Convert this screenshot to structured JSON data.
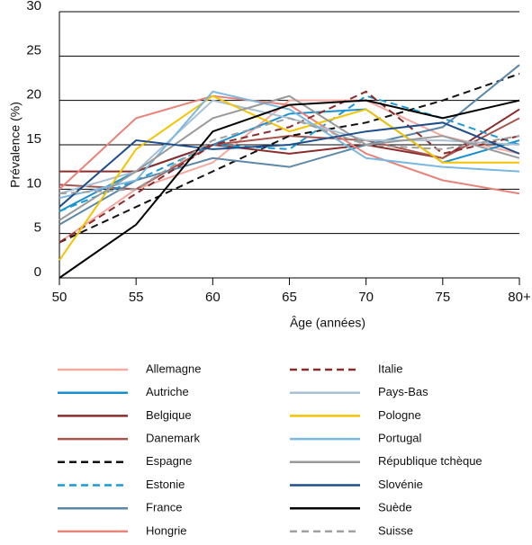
{
  "chart_data": {
    "type": "line",
    "x_label": "Âge (années)",
    "y_label": "Prévalence (%)",
    "categories": [
      "50",
      "55",
      "60",
      "65",
      "70",
      "75",
      "80+"
    ],
    "ylim": [
      0,
      30
    ],
    "yticks": [
      0,
      5,
      10,
      15,
      20,
      25,
      30
    ],
    "grid": true,
    "series": [
      {
        "name": "Allemagne",
        "color": "#f4aaa0",
        "style": "solid",
        "values": [
          4,
          10,
          13,
          20,
          20,
          16,
          14
        ]
      },
      {
        "name": "Autriche",
        "color": "#1a8fd0",
        "style": "solid",
        "values": [
          7.5,
          12,
          15,
          18.5,
          19,
          13,
          15.5
        ]
      },
      {
        "name": "Belgique",
        "color": "#8b2c2c",
        "style": "solid",
        "values": [
          12,
          12,
          15,
          14,
          15,
          13.5,
          19
        ]
      },
      {
        "name": "Danemark",
        "color": "#a8554e",
        "style": "solid",
        "values": [
          10.5,
          10,
          15,
          16,
          15.5,
          13.5,
          18
        ]
      },
      {
        "name": "Espagne",
        "color": "#111111",
        "style": "dashed",
        "values": [
          4,
          8,
          12,
          16,
          17.5,
          20,
          23
        ]
      },
      {
        "name": "Estonie",
        "color": "#1a9ad6",
        "style": "dashed",
        "values": [
          7.5,
          11,
          15,
          14.5,
          20.5,
          18,
          15
        ]
      },
      {
        "name": "France",
        "color": "#5b87a8",
        "style": "solid",
        "values": [
          6,
          11,
          13.5,
          12.5,
          15,
          17,
          24
        ]
      },
      {
        "name": "Hongrie",
        "color": "#e8837a",
        "style": "solid",
        "values": [
          10,
          18,
          20.5,
          19.5,
          14,
          11,
          9.5
        ]
      },
      {
        "name": "Italie",
        "color": "#8b2c2c",
        "style": "dashed",
        "values": [
          4,
          9.5,
          15,
          17,
          21,
          14,
          16
        ]
      },
      {
        "name": "Pays-Bas",
        "color": "#a9c0d4",
        "style": "solid",
        "values": [
          9.5,
          12,
          20,
          18,
          15.5,
          15.5,
          15
        ]
      },
      {
        "name": "Pologne",
        "color": "#f5c400",
        "style": "solid",
        "values": [
          2,
          14.5,
          20.5,
          16.5,
          19,
          13,
          13
        ]
      },
      {
        "name": "Portugal",
        "color": "#7ab8e0",
        "style": "solid",
        "values": [
          9,
          11,
          21,
          19,
          13.5,
          12.5,
          12
        ]
      },
      {
        "name": "République tchèque",
        "color": "#9a9a9a",
        "style": "solid",
        "values": [
          6.5,
          12,
          18,
          20.5,
          15,
          16,
          13.5
        ]
      },
      {
        "name": "Slovénie",
        "color": "#1f4e8c",
        "style": "solid",
        "values": [
          8,
          15.5,
          14.5,
          15,
          16.5,
          17.5,
          14
        ]
      },
      {
        "name": "Suède",
        "color": "#000000",
        "style": "solid",
        "values": [
          0,
          6,
          16.5,
          19.5,
          20,
          18,
          20
        ]
      },
      {
        "name": "Suisse",
        "color": "#a0a0a0",
        "style": "dashed",
        "values": [
          9.5,
          10,
          15.5,
          18,
          15,
          14.5,
          16
        ]
      }
    ]
  }
}
